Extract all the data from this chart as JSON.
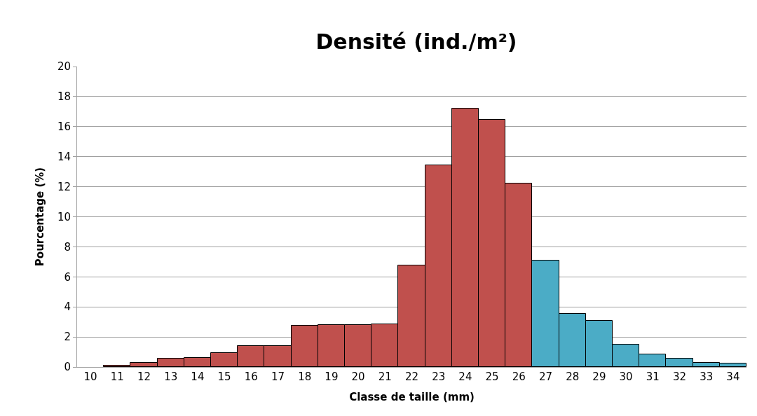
{
  "chart_data": {
    "type": "bar",
    "title": "Densité (ind./m²)",
    "xlabel": "Classe de taille (mm)",
    "ylabel": "Pourcentage (%)",
    "categories": [
      "10",
      "11",
      "12",
      "13",
      "14",
      "15",
      "16",
      "17",
      "18",
      "19",
      "20",
      "21",
      "22",
      "23",
      "24",
      "25",
      "26",
      "27",
      "28",
      "29",
      "30",
      "31",
      "32",
      "33",
      "34"
    ],
    "values": [
      null,
      0.1,
      0.3,
      0.55,
      0.6,
      0.95,
      1.4,
      1.4,
      2.75,
      2.8,
      2.8,
      2.85,
      6.75,
      13.45,
      17.2,
      16.45,
      12.2,
      7.1,
      3.55,
      3.1,
      1.5,
      0.85,
      0.55,
      0.3,
      0.25
    ],
    "colors": [
      "#c0504d",
      "#c0504d",
      "#c0504d",
      "#c0504d",
      "#c0504d",
      "#c0504d",
      "#c0504d",
      "#c0504d",
      "#c0504d",
      "#c0504d",
      "#c0504d",
      "#c0504d",
      "#c0504d",
      "#c0504d",
      "#c0504d",
      "#c0504d",
      "#c0504d",
      "#4bacc6",
      "#4bacc6",
      "#4bacc6",
      "#4bacc6",
      "#4bacc6",
      "#4bacc6",
      "#4bacc6",
      "#4bacc6"
    ],
    "ylim": [
      0,
      20
    ],
    "yticks": [
      0,
      2,
      4,
      6,
      8,
      10,
      12,
      14,
      16,
      18,
      20
    ],
    "grid": "y"
  }
}
